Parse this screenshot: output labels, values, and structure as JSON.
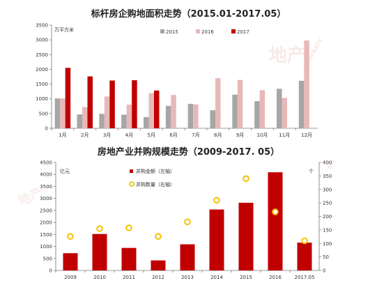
{
  "chart_data": [
    {
      "type": "bar",
      "title": "标杆房企购地面积走势（2015.01-2017.05）",
      "ylabel": "万平方米",
      "ylim": [
        0,
        3500
      ],
      "yticks": [
        0,
        500,
        1000,
        1500,
        2000,
        2500,
        3000,
        3500
      ],
      "categories": [
        "1月",
        "2月",
        "3月",
        "4月",
        "5月",
        "6月",
        "7月",
        "8月",
        "9月",
        "10月",
        "11月",
        "12月"
      ],
      "legend_position": "top-right",
      "grid": false,
      "series": [
        {
          "name": "2015",
          "color": "#a6a6a6",
          "values": [
            1010,
            470,
            490,
            460,
            380,
            760,
            830,
            610,
            1140,
            920,
            1340,
            1610
          ]
        },
        {
          "name": "2016",
          "color": "#e8b8b8",
          "values": [
            1010,
            720,
            1080,
            800,
            1190,
            1130,
            810,
            1700,
            1640,
            1290,
            1030,
            2980
          ]
        },
        {
          "name": "2017",
          "color": "#c00000",
          "values": [
            2050,
            1760,
            1620,
            1630,
            1280,
            null,
            null,
            null,
            null,
            null,
            null,
            null
          ]
        }
      ]
    },
    {
      "type": "bar",
      "title": "房地产业并购规模走势（2009-2017. 05）",
      "ylabel": "亿元",
      "y2label": "个",
      "ylim": [
        0,
        4500
      ],
      "y2lim": [
        0,
        400
      ],
      "yticks": [
        0,
        500,
        1000,
        1500,
        2000,
        2500,
        3000,
        3500,
        4000,
        4500
      ],
      "y2ticks": [
        0,
        50,
        100,
        150,
        200,
        250,
        300,
        350,
        400
      ],
      "categories": [
        "2009",
        "2010",
        "2011",
        "2012",
        "2013",
        "2014",
        "2015",
        "2016",
        "2017.05"
      ],
      "legend_position": "top-right",
      "grid": false,
      "series": [
        {
          "name": "并购金额（左轴）",
          "color": "#c00000",
          "type": "bar",
          "values": [
            720,
            1520,
            940,
            420,
            1090,
            2540,
            2820,
            4090,
            1160
          ]
        },
        {
          "name": "并购数量（右轴）",
          "color": "#f5c000",
          "type": "scatter",
          "axis": "right",
          "values": [
            126,
            155,
            158,
            126,
            180,
            260,
            340,
            217,
            110
          ]
        }
      ]
    }
  ],
  "watermark": {
    "text_top": "地产",
    "text_side": "PROPERTY",
    "text_bottom": "地产",
    "text_bottom_side": "RTY"
  }
}
